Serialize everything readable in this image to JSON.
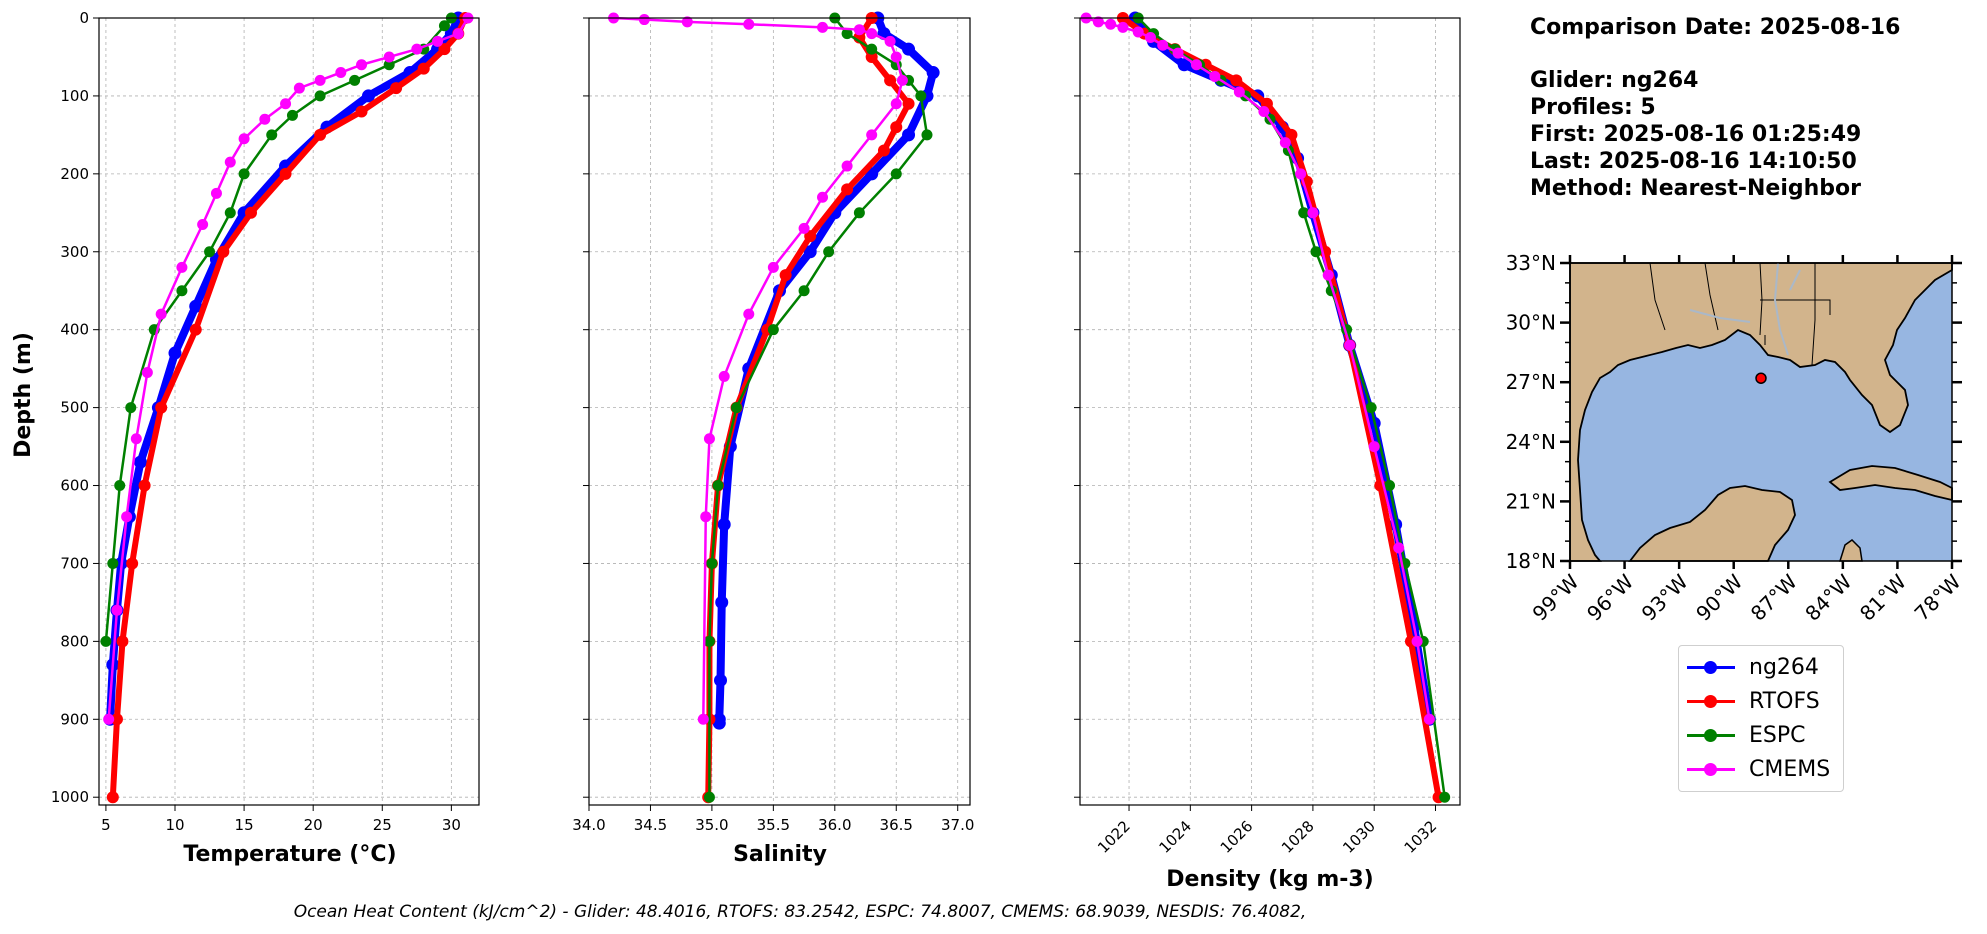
{
  "info": {
    "comparison": "Comparison Date: 2025-08-16",
    "glider": "Glider: ng264",
    "profiles": "Profiles: 5",
    "first": "First: 2025-08-16 01:25:49",
    "last": "Last: 2025-08-16 14:10:50",
    "method": "Method: Nearest-Neighbor"
  },
  "footer": "Ocean Heat Content (kJ/cm^2) - Glider: 48.4016,  RTOFS: 83.2542,  ESPC: 74.8007,  CMEMS: 68.9039,  NESDIS: 76.4082,",
  "colors": {
    "ng264": "#0000ff",
    "RTOFS": "#ff0000",
    "ESPC": "#008000",
    "CMEMS": "#ff00ff",
    "land": "#d2b48c",
    "ocean": "#97b6e1"
  },
  "legend": [
    {
      "name": "ng264",
      "color": "#0000ff"
    },
    {
      "name": "RTOFS",
      "color": "#ff0000"
    },
    {
      "name": "ESPC",
      "color": "#008000"
    },
    {
      "name": "CMEMS",
      "color": "#ff00ff"
    }
  ],
  "chart_data": [
    {
      "type": "line",
      "xlabel": "Temperature (°C)",
      "ylabel": "Depth (m)",
      "xlim": [
        4.5,
        32
      ],
      "ylim": [
        1010,
        0
      ],
      "xticks": [
        5,
        10,
        15,
        20,
        25,
        30
      ],
      "yticks": [
        0,
        100,
        200,
        300,
        400,
        500,
        600,
        700,
        800,
        900,
        1000
      ],
      "grid": true,
      "series": [
        {
          "name": "ng264",
          "x": [
            30.5,
            30,
            29,
            27,
            24,
            21,
            18,
            15,
            13,
            11.5,
            10,
            8.8,
            7.5,
            6.7,
            6.1,
            5.8,
            5.5,
            5.3
          ],
          "y": [
            0,
            20,
            40,
            70,
            100,
            140,
            190,
            250,
            310,
            370,
            430,
            500,
            570,
            640,
            700,
            760,
            830,
            900
          ]
        },
        {
          "name": "RTOFS",
          "x": [
            31,
            30.5,
            29.5,
            28,
            26,
            23.5,
            20.5,
            18,
            15.5,
            13.5,
            11.5,
            9,
            7.8,
            6.9,
            6.2,
            5.8,
            5.5
          ],
          "y": [
            0,
            20,
            40,
            65,
            90,
            120,
            150,
            200,
            250,
            300,
            400,
            500,
            600,
            700,
            800,
            900,
            1000
          ]
        },
        {
          "name": "ESPC",
          "x": [
            30,
            29.5,
            28,
            25.5,
            23,
            20.5,
            18.5,
            17,
            15,
            14,
            12.5,
            10.5,
            8.5,
            6.8,
            6,
            5.5,
            5
          ],
          "y": [
            0,
            10,
            40,
            60,
            80,
            100,
            125,
            150,
            200,
            250,
            300,
            350,
            400,
            500,
            600,
            700,
            800
          ]
        },
        {
          "name": "CMEMS",
          "x": [
            31.2,
            30.5,
            29,
            27.5,
            25.5,
            23.5,
            22,
            20.5,
            19,
            18,
            16.5,
            15,
            14,
            13,
            12,
            10.5,
            9,
            8,
            7.2,
            6.5,
            5.8,
            5.2
          ],
          "y": [
            0,
            20,
            30,
            40,
            50,
            60,
            70,
            80,
            90,
            110,
            130,
            155,
            185,
            225,
            265,
            320,
            380,
            455,
            540,
            640,
            760,
            900
          ]
        }
      ]
    },
    {
      "type": "line",
      "xlabel": "Salinity",
      "xlim": [
        34.0,
        37.1
      ],
      "ylim": [
        1010,
        0
      ],
      "xticks": [
        34.0,
        34.5,
        35.0,
        35.5,
        36.0,
        36.5,
        37.0
      ],
      "xticklabels": [
        "34.0",
        "34.5",
        "35.0",
        "35.5",
        "36.0",
        "36.5",
        "37.0"
      ],
      "grid": true,
      "series": [
        {
          "name": "ng264",
          "x": [
            36.35,
            36.4,
            36.6,
            36.8,
            36.75,
            36.6,
            36.3,
            36.0,
            35.8,
            35.55,
            35.3,
            35.15,
            35.1,
            35.08,
            35.07,
            35.06,
            35.06
          ],
          "y": [
            0,
            20,
            40,
            70,
            100,
            150,
            200,
            250,
            300,
            350,
            450,
            550,
            650,
            750,
            850,
            900,
            905
          ]
        },
        {
          "name": "RTOFS",
          "x": [
            36.3,
            36.2,
            36.3,
            36.45,
            36.6,
            36.5,
            36.4,
            36.1,
            35.8,
            35.6,
            35.45,
            35.2,
            35.05,
            35.0,
            34.98,
            34.98,
            34.97
          ],
          "y": [
            0,
            25,
            50,
            80,
            110,
            140,
            170,
            220,
            280,
            330,
            400,
            500,
            600,
            700,
            800,
            900,
            1000
          ]
        },
        {
          "name": "ESPC",
          "x": [
            36.0,
            36.1,
            36.3,
            36.5,
            36.6,
            36.7,
            36.75,
            36.5,
            36.2,
            35.95,
            35.75,
            35.5,
            35.2,
            35.05,
            35.0,
            34.98,
            34.98
          ],
          "y": [
            0,
            20,
            40,
            60,
            80,
            100,
            150,
            200,
            250,
            300,
            350,
            400,
            500,
            600,
            700,
            800,
            1000
          ]
        },
        {
          "name": "CMEMS",
          "x": [
            34.2,
            34.45,
            34.8,
            35.3,
            35.9,
            36.2,
            36.3,
            36.45,
            36.5,
            36.55,
            36.5,
            36.3,
            36.1,
            35.9,
            35.75,
            35.5,
            35.3,
            35.1,
            34.98,
            34.95,
            34.93
          ],
          "y": [
            0,
            2,
            5,
            8,
            12,
            15,
            20,
            30,
            50,
            80,
            110,
            150,
            190,
            230,
            270,
            320,
            380,
            460,
            540,
            640,
            900
          ]
        }
      ]
    },
    {
      "type": "line",
      "xlabel": "Density (kg m-3)",
      "xlim": [
        1020.4,
        1032.8
      ],
      "ylim": [
        1010,
        0
      ],
      "xticks": [
        1022,
        1024,
        1026,
        1028,
        1030,
        1032
      ],
      "xticklabels": [
        "1022",
        "1024",
        "1026",
        "1028",
        "1030",
        "1032"
      ],
      "grid": true,
      "series": [
        {
          "name": "ng264",
          "x": [
            1022.2,
            1022.8,
            1023.8,
            1025,
            1026.2,
            1027,
            1027.5,
            1028,
            1028.6,
            1029.2,
            1030,
            1030.7,
            1031.3,
            1031.8
          ],
          "y": [
            0,
            30,
            60,
            80,
            100,
            140,
            180,
            250,
            330,
            420,
            520,
            650,
            780,
            900
          ]
        },
        {
          "name": "RTOFS",
          "x": [
            1021.8,
            1022.5,
            1023.5,
            1024.5,
            1025.5,
            1026.5,
            1027.3,
            1027.8,
            1028.4,
            1029.2,
            1030.2,
            1031.2,
            1032.1
          ],
          "y": [
            0,
            20,
            40,
            60,
            80,
            110,
            150,
            210,
            300,
            420,
            600,
            800,
            1000
          ]
        },
        {
          "name": "ESPC",
          "x": [
            1022.3,
            1022.8,
            1023.5,
            1024.3,
            1025,
            1025.8,
            1026.6,
            1027.2,
            1027.7,
            1028.1,
            1028.6,
            1029.1,
            1029.9,
            1030.5,
            1031,
            1031.6,
            1032.3
          ],
          "y": [
            0,
            20,
            40,
            60,
            80,
            100,
            130,
            170,
            250,
            300,
            350,
            400,
            500,
            600,
            700,
            800,
            1000
          ]
        },
        {
          "name": "CMEMS",
          "x": [
            1020.6,
            1021,
            1021.4,
            1021.8,
            1022.3,
            1022.7,
            1023.1,
            1023.6,
            1024.2,
            1024.8,
            1025.6,
            1026.4,
            1027.1,
            1027.6,
            1028,
            1028.5,
            1029.2,
            1030,
            1030.8,
            1031.4,
            1031.8
          ],
          "y": [
            0,
            5,
            8,
            12,
            18,
            25,
            35,
            45,
            60,
            75,
            95,
            120,
            160,
            200,
            250,
            330,
            420,
            550,
            680,
            800,
            900
          ]
        }
      ]
    }
  ],
  "map": {
    "lat_ticks": [
      "33°N",
      "30°N",
      "27°N",
      "24°N",
      "21°N",
      "18°N"
    ],
    "lon_ticks": [
      "99°W",
      "96°W",
      "93°W",
      "90°W",
      "87°W",
      "84°W",
      "81°W",
      "78°W"
    ],
    "lat_range": [
      18,
      33
    ],
    "lon_range": [
      -99,
      -78
    ],
    "marker": {
      "lon": -88.5,
      "lat": 27.2,
      "color": "#ff0000"
    }
  }
}
